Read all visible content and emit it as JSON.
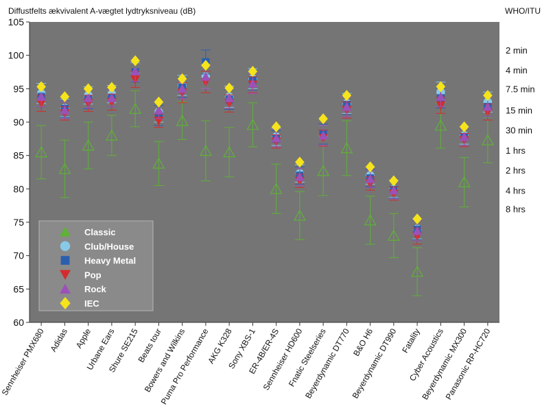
{
  "chart_data": {
    "type": "scatter",
    "title": "Diffustfelts ækvivalent A-vægtet lydtryksniveau (dB)",
    "xlabel": "",
    "ylabel": "",
    "ylim": [
      60,
      105
    ],
    "yticks": [
      60,
      65,
      70,
      75,
      80,
      85,
      90,
      95,
      100,
      105
    ],
    "grid": false,
    "legend_position": "bottom-left",
    "categories": [
      "Sennheiser PMX680",
      "Adidas",
      "Apple",
      "Urbane Ears",
      "Shure SE215",
      "Beats tour",
      "Bowers and Wilkins",
      "Puma Pro Performance",
      "AKG K328",
      "Sony XBS-1",
      "ER-4B/ER-4S",
      "Sennheiser HD600",
      "Fnatic Steelseries",
      "Beyerdynamic DT770",
      "B&O H6",
      "Beyerdynamic DT990",
      "Fatality",
      "Cyber Acoustics",
      "Beyerdynamic MX300",
      "Panasonic RP-HC720"
    ],
    "series": [
      {
        "name": "Classic",
        "marker": "triangle-up",
        "color": "#5fb236",
        "values": [
          85.5,
          83.0,
          86.5,
          88.0,
          92.0,
          83.8,
          90.2,
          85.7,
          85.5,
          89.6,
          80.0,
          76.0,
          82.7,
          86.1,
          75.3,
          73.0,
          67.6,
          89.5,
          81.0,
          87.3
        ],
        "err": [
          4.0,
          4.3,
          3.5,
          3.0,
          2.7,
          3.3,
          2.8,
          4.5,
          3.7,
          3.3,
          3.7,
          3.6,
          3.7,
          4.1,
          3.6,
          3.3,
          3.6,
          3.4,
          3.7,
          3.4
        ]
      },
      {
        "name": "Club/House",
        "marker": "circle",
        "color": "#88c9e8",
        "values": [
          94.3,
          92.1,
          94.0,
          94.2,
          97.5,
          91.5,
          95.5,
          96.8,
          93.8,
          96.5,
          87.8,
          82.3,
          88.0,
          92.8,
          82.0,
          80.0,
          74.0,
          94.5,
          88.0,
          93.0
        ],
        "err": [
          1.5,
          1.3,
          1.3,
          1.3,
          1.4,
          1.5,
          1.5,
          1.8,
          1.6,
          1.5,
          1.3,
          1.3,
          1.5,
          1.5,
          1.3,
          1.3,
          1.5,
          1.5,
          1.3,
          1.5
        ]
      },
      {
        "name": "Heavy Metal",
        "marker": "square",
        "color": "#2b5fad",
        "values": [
          93.8,
          92.0,
          93.5,
          93.6,
          97.5,
          91.0,
          95.2,
          99.0,
          93.4,
          96.3,
          87.5,
          82.0,
          88.2,
          92.6,
          81.6,
          79.9,
          73.9,
          93.6,
          87.8,
          92.3
        ],
        "err": [
          1.5,
          1.3,
          1.5,
          1.3,
          1.5,
          1.5,
          1.5,
          1.8,
          1.5,
          1.5,
          1.2,
          1.3,
          1.5,
          1.5,
          1.3,
          1.3,
          1.5,
          1.5,
          1.3,
          1.5
        ]
      },
      {
        "name": "Pop",
        "marker": "triangle-down",
        "color": "#d42c2c",
        "values": [
          92.8,
          91.3,
          92.8,
          93.0,
          96.4,
          90.2,
          94.4,
          96.0,
          92.8,
          95.6,
          87.1,
          81.2,
          87.6,
          91.8,
          80.8,
          79.3,
          72.9,
          92.5,
          87.3,
          91.5
        ],
        "err": [
          1.2,
          1.0,
          1.2,
          1.2,
          1.2,
          1.0,
          1.5,
          1.6,
          1.3,
          1.2,
          1.0,
          1.0,
          1.2,
          1.2,
          1.0,
          1.0,
          1.2,
          1.2,
          1.0,
          1.2
        ]
      },
      {
        "name": "Rock",
        "marker": "triangle-up",
        "color": "#9b52b8",
        "values": [
          93.8,
          91.8,
          93.6,
          93.6,
          97.6,
          91.8,
          95.0,
          96.8,
          93.6,
          95.8,
          87.6,
          81.8,
          88.0,
          92.3,
          81.5,
          79.8,
          73.7,
          93.8,
          87.8,
          92.3
        ],
        "err": [
          1.5,
          1.3,
          1.5,
          1.3,
          1.5,
          1.3,
          1.5,
          1.8,
          1.5,
          1.5,
          1.3,
          1.3,
          1.5,
          1.5,
          1.3,
          1.3,
          1.5,
          1.5,
          1.3,
          1.5
        ]
      },
      {
        "name": "IEC",
        "marker": "diamond",
        "color": "#f5e31c",
        "values": [
          95.3,
          93.8,
          95.0,
          95.2,
          99.2,
          93.0,
          96.5,
          98.5,
          95.1,
          97.6,
          89.3,
          84.0,
          90.5,
          94.0,
          83.3,
          81.2,
          75.5,
          95.3,
          89.3,
          94.0
        ],
        "err": [
          0,
          0,
          0,
          0,
          0,
          0,
          0,
          0,
          0,
          0,
          0,
          0,
          0,
          0,
          0,
          0,
          0,
          0,
          0,
          0
        ]
      }
    ],
    "right_axis": {
      "title": "WHO/ITU",
      "labels": [
        {
          "text": "2 min",
          "y": 100.8
        },
        {
          "text": "4 min",
          "y": 97.8
        },
        {
          "text": "7.5 min",
          "y": 95.0
        },
        {
          "text": "15 min",
          "y": 91.8
        },
        {
          "text": "30 min",
          "y": 88.8
        },
        {
          "text": "1 hrs",
          "y": 85.8
        },
        {
          "text": "2 hrs",
          "y": 82.8
        },
        {
          "text": "4 hrs",
          "y": 79.8
        },
        {
          "text": "8 hrs",
          "y": 77.0
        }
      ]
    },
    "colors": {
      "plot_bg": "#757575",
      "legend_bg": "#8a8a8a"
    }
  }
}
